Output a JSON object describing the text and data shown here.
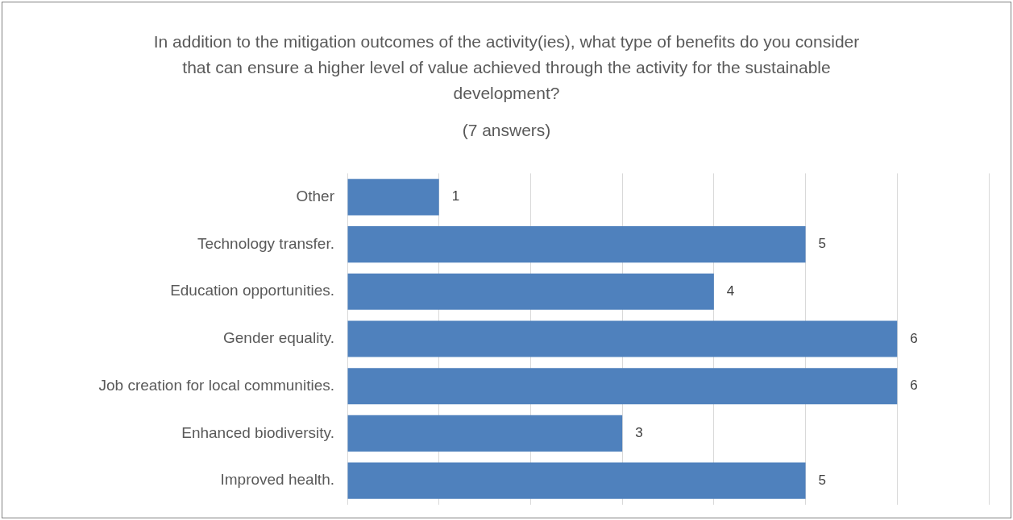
{
  "chart_data": {
    "type": "bar",
    "orientation": "horizontal",
    "title": "In addition to the mitigation outcomes of the activity(ies), what type of benefits do you consider that can ensure a higher level of value achieved through the activity for the sustainable development?",
    "subtitle": "(7 answers)",
    "categories": [
      "Other",
      "Technology transfer.",
      "Education opportunities.",
      "Gender equality.",
      "Job creation for local communities.",
      "Enhanced biodiversity.",
      "Improved health."
    ],
    "values": [
      1,
      5,
      4,
      6,
      6,
      3,
      5
    ],
    "color": "#4f81bd",
    "xlim": [
      0,
      7
    ],
    "xticks": [
      {
        "value": 0,
        "label": null
      },
      {
        "value": 1,
        "label": null
      },
      {
        "value": 2,
        "label": null
      },
      {
        "value": 3,
        "label": null
      },
      {
        "value": 4,
        "label": null
      },
      {
        "value": 5,
        "label": null
      },
      {
        "value": 6,
        "label": null
      },
      {
        "value": 7,
        "label": null
      }
    ],
    "grid": "x",
    "tick_labels": "y",
    "data_labels": true
  }
}
